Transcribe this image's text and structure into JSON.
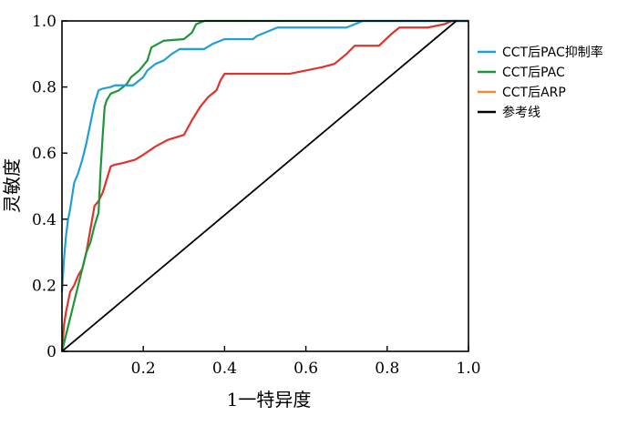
{
  "chart_data": {
    "type": "line",
    "xlabel": "1一特异度",
    "ylabel": "灵敏度",
    "xlim": [
      0,
      1
    ],
    "ylim": [
      0,
      1
    ],
    "x_ticks": [
      "0.2",
      "0.4",
      "0.6",
      "0.8",
      "1.0"
    ],
    "x_tick_values": [
      0.2,
      0.4,
      0.6,
      0.8,
      1.0
    ],
    "y_ticks": [
      "0",
      "0.2",
      "0.4",
      "0.6",
      "0.8",
      "1.0"
    ],
    "y_tick_values": [
      0,
      0.2,
      0.4,
      0.6,
      0.8,
      1.0
    ],
    "grid": false,
    "legend_position": "right",
    "series": [
      {
        "name": "CCT后PAC抑制率",
        "color": "#1f9fd6",
        "points": [
          [
            0,
            0.18
          ],
          [
            0.005,
            0.28
          ],
          [
            0.01,
            0.35
          ],
          [
            0.015,
            0.4
          ],
          [
            0.02,
            0.43
          ],
          [
            0.025,
            0.47
          ],
          [
            0.03,
            0.51
          ],
          [
            0.04,
            0.54
          ],
          [
            0.05,
            0.58
          ],
          [
            0.06,
            0.63
          ],
          [
            0.07,
            0.69
          ],
          [
            0.075,
            0.72
          ],
          [
            0.08,
            0.75
          ],
          [
            0.09,
            0.79
          ],
          [
            0.1,
            0.795
          ],
          [
            0.12,
            0.8
          ],
          [
            0.13,
            0.805
          ],
          [
            0.175,
            0.805
          ],
          [
            0.2,
            0.83
          ],
          [
            0.21,
            0.85
          ],
          [
            0.23,
            0.87
          ],
          [
            0.25,
            0.88
          ],
          [
            0.27,
            0.9
          ],
          [
            0.29,
            0.915
          ],
          [
            0.3,
            0.915
          ],
          [
            0.35,
            0.915
          ],
          [
            0.37,
            0.93
          ],
          [
            0.39,
            0.94
          ],
          [
            0.4,
            0.945
          ],
          [
            0.47,
            0.945
          ],
          [
            0.48,
            0.955
          ],
          [
            0.53,
            0.98
          ],
          [
            0.7,
            0.98
          ],
          [
            0.74,
            1.0
          ],
          [
            1.0,
            1.0
          ]
        ]
      },
      {
        "name": "CCT后PAC",
        "color": "#1e9638",
        "points": [
          [
            0,
            0
          ],
          [
            0.01,
            0.05
          ],
          [
            0.02,
            0.1
          ],
          [
            0.03,
            0.15
          ],
          [
            0.04,
            0.2
          ],
          [
            0.05,
            0.25
          ],
          [
            0.06,
            0.3
          ],
          [
            0.07,
            0.33
          ],
          [
            0.08,
            0.38
          ],
          [
            0.09,
            0.42
          ],
          [
            0.095,
            0.55
          ],
          [
            0.1,
            0.65
          ],
          [
            0.105,
            0.74
          ],
          [
            0.11,
            0.76
          ],
          [
            0.12,
            0.78
          ],
          [
            0.14,
            0.79
          ],
          [
            0.16,
            0.81
          ],
          [
            0.17,
            0.83
          ],
          [
            0.19,
            0.85
          ],
          [
            0.21,
            0.88
          ],
          [
            0.22,
            0.92
          ],
          [
            0.25,
            0.94
          ],
          [
            0.3,
            0.945
          ],
          [
            0.32,
            0.965
          ],
          [
            0.33,
            0.99
          ],
          [
            0.35,
            1.0
          ],
          [
            1.0,
            1.0
          ]
        ]
      },
      {
        "name": "CCT后ARP",
        "color": "#f28a30",
        "points": [
          [
            0,
            0
          ],
          [
            0.005,
            0.08
          ],
          [
            0.01,
            0.12
          ],
          [
            0.02,
            0.18
          ],
          [
            0.03,
            0.2
          ],
          [
            0.04,
            0.23
          ],
          [
            0.05,
            0.25
          ],
          [
            0.06,
            0.3
          ],
          [
            0.07,
            0.37
          ],
          [
            0.08,
            0.44
          ],
          [
            0.09,
            0.455
          ],
          [
            0.1,
            0.48
          ],
          [
            0.11,
            0.52
          ],
          [
            0.12,
            0.56
          ],
          [
            0.13,
            0.565
          ],
          [
            0.15,
            0.57
          ],
          [
            0.18,
            0.58
          ],
          [
            0.2,
            0.595
          ],
          [
            0.23,
            0.62
          ],
          [
            0.26,
            0.64
          ],
          [
            0.3,
            0.655
          ],
          [
            0.32,
            0.7
          ],
          [
            0.34,
            0.74
          ],
          [
            0.36,
            0.77
          ],
          [
            0.38,
            0.79
          ],
          [
            0.39,
            0.82
          ],
          [
            0.4,
            0.84
          ],
          [
            0.5,
            0.84
          ],
          [
            0.56,
            0.84
          ],
          [
            0.6,
            0.85
          ],
          [
            0.64,
            0.86
          ],
          [
            0.67,
            0.87
          ],
          [
            0.7,
            0.9
          ],
          [
            0.72,
            0.925
          ],
          [
            0.78,
            0.925
          ],
          [
            0.81,
            0.96
          ],
          [
            0.83,
            0.98
          ],
          [
            0.9,
            0.98
          ],
          [
            0.94,
            0.99
          ],
          [
            0.96,
            1.0
          ],
          [
            1.0,
            1.0
          ]
        ]
      },
      {
        "name": "参考线",
        "color": "#000000",
        "points": [
          [
            0,
            0
          ],
          [
            0.97,
            1.0
          ]
        ]
      }
    ]
  },
  "overlay_series": {
    "name": "CCT后ARP",
    "color": "#e0322a"
  }
}
